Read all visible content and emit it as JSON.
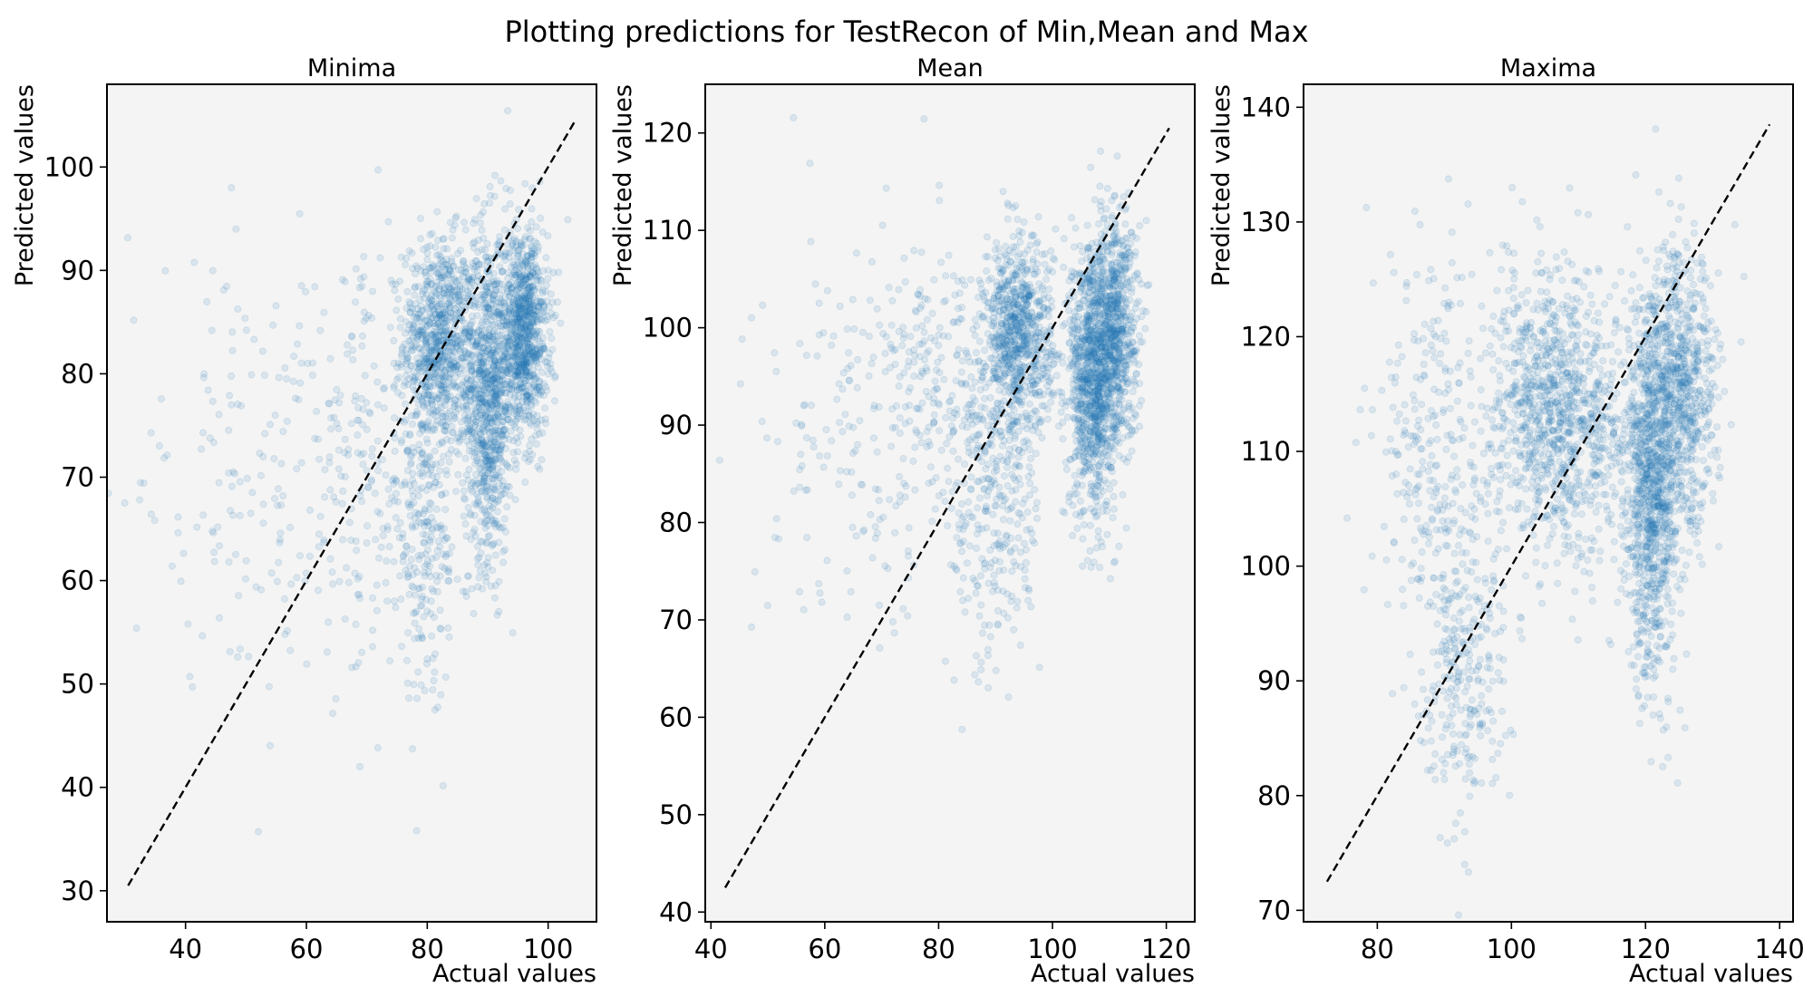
{
  "figure": {
    "suptitle": "Plotting predictions for TestRecon of Min,Mean and Max",
    "background": "#ffffff",
    "axes_face": "#f4f4f4",
    "point_color": "#1f77b4",
    "point_alpha": 0.12,
    "identity_line_color": "#000000"
  },
  "chart_data": [
    {
      "type": "scatter",
      "title": "Minima",
      "xlabel": "Actual values",
      "ylabel": "Predicted values",
      "xlim": [
        27,
        108
      ],
      "ylim": [
        27,
        108
      ],
      "xticks": [
        40,
        60,
        80,
        100
      ],
      "yticks": [
        30,
        40,
        50,
        60,
        70,
        80,
        90,
        100
      ],
      "identity_line": [
        30.5,
        104.5
      ],
      "clusters": [
        {
          "cx": 82,
          "cy": 83,
          "sx": 3,
          "sy": 5,
          "n": 800
        },
        {
          "cx": 90,
          "cy": 78,
          "sx": 2,
          "sy": 8,
          "n": 900
        },
        {
          "cx": 96,
          "cy": 84,
          "sx": 2,
          "sy": 5,
          "n": 900
        },
        {
          "cx": 80,
          "cy": 65,
          "sx": 3,
          "sy": 8,
          "n": 250
        },
        {
          "cx": 70,
          "cy": 70,
          "sx": 5,
          "sy": 10,
          "n": 200
        },
        {
          "cx": 50,
          "cy": 70,
          "sx": 10,
          "sy": 10,
          "n": 160
        }
      ]
    },
    {
      "type": "scatter",
      "title": "Mean",
      "xlabel": "Actual values",
      "ylabel": "Predicted values",
      "xlim": [
        39,
        125
      ],
      "ylim": [
        39,
        125
      ],
      "xticks": [
        40,
        60,
        80,
        100,
        120
      ],
      "yticks": [
        40,
        50,
        60,
        70,
        80,
        90,
        100,
        110,
        120
      ],
      "identity_line": [
        42.5,
        120.5
      ],
      "clusters": [
        {
          "cx": 94,
          "cy": 99,
          "sx": 3,
          "sy": 5,
          "n": 800
        },
        {
          "cx": 107,
          "cy": 95,
          "sx": 2,
          "sy": 7,
          "n": 1000
        },
        {
          "cx": 111,
          "cy": 100,
          "sx": 2,
          "sy": 6,
          "n": 700
        },
        {
          "cx": 90,
          "cy": 82,
          "sx": 4,
          "sy": 9,
          "n": 300
        },
        {
          "cx": 80,
          "cy": 95,
          "sx": 6,
          "sy": 7,
          "n": 200
        },
        {
          "cx": 65,
          "cy": 88,
          "sx": 9,
          "sy": 10,
          "n": 160
        }
      ]
    },
    {
      "type": "scatter",
      "title": "Maxima",
      "xlabel": "Actual values",
      "ylabel": "Predicted values",
      "xlim": [
        69,
        142
      ],
      "ylim": [
        69,
        142
      ],
      "xticks": [
        80,
        100,
        120,
        140
      ],
      "yticks": [
        70,
        80,
        90,
        100,
        110,
        120,
        130,
        140
      ],
      "identity_line": [
        72.5,
        138.5
      ],
      "clusters": [
        {
          "cx": 105,
          "cy": 114,
          "sx": 4,
          "sy": 6,
          "n": 700
        },
        {
          "cx": 121,
          "cy": 106,
          "sx": 2,
          "sy": 8,
          "n": 900
        },
        {
          "cx": 125,
          "cy": 115,
          "sx": 3,
          "sy": 6,
          "n": 800
        },
        {
          "cx": 93,
          "cy": 92,
          "sx": 3,
          "sy": 8,
          "n": 300
        },
        {
          "cx": 88,
          "cy": 110,
          "sx": 4,
          "sy": 9,
          "n": 250
        },
        {
          "cx": 112,
          "cy": 112,
          "sx": 5,
          "sy": 6,
          "n": 400
        }
      ]
    }
  ]
}
